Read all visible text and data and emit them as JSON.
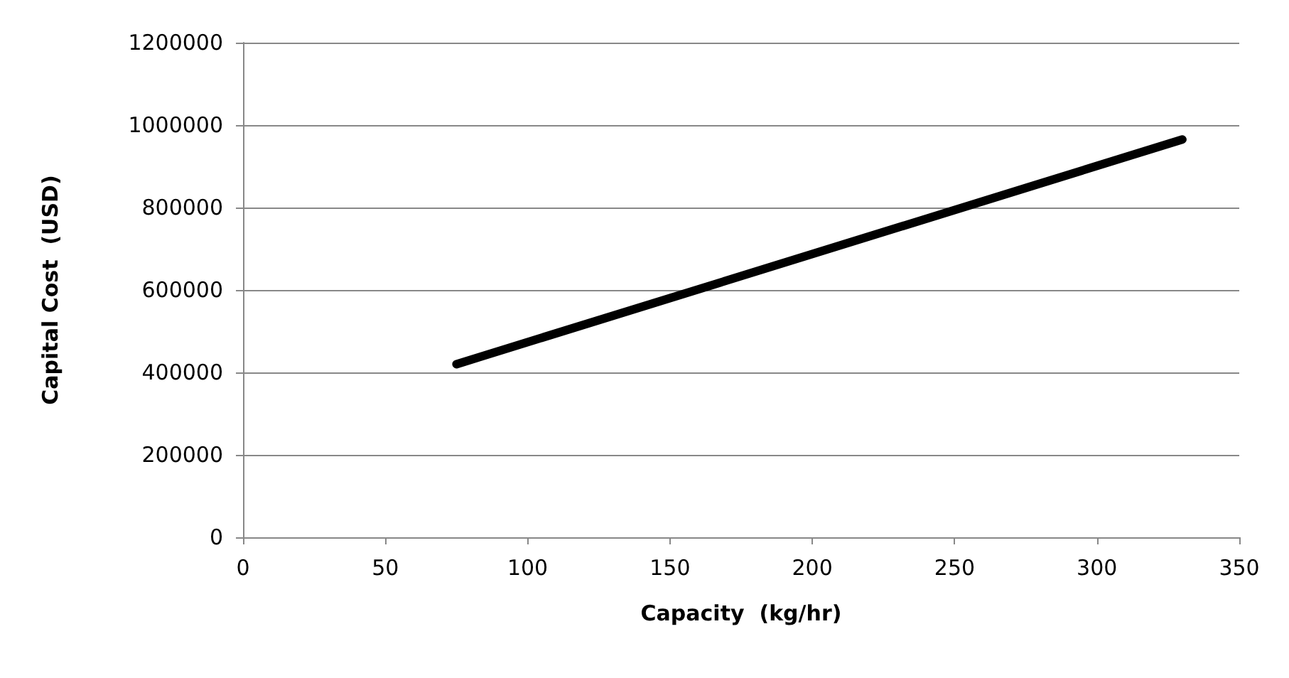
{
  "chart_data": {
    "type": "line",
    "xlabel": "Capacity  (kg/hr)",
    "ylabel": "Capital Cost  (USD)",
    "series": [
      {
        "color": "#000000",
        "x": [
          75,
          330
        ],
        "values": [
          420000,
          965000
        ]
      }
    ],
    "xlim": [
      0,
      350
    ],
    "xticks": [
      0,
      50,
      100,
      150,
      200,
      250,
      300,
      350
    ],
    "ylim": [
      0,
      1200000
    ],
    "yticks": [
      0,
      200000,
      400000,
      600000,
      800000,
      1000000,
      1200000
    ],
    "grid": "y",
    "marker": "none",
    "line_style": "solid"
  }
}
